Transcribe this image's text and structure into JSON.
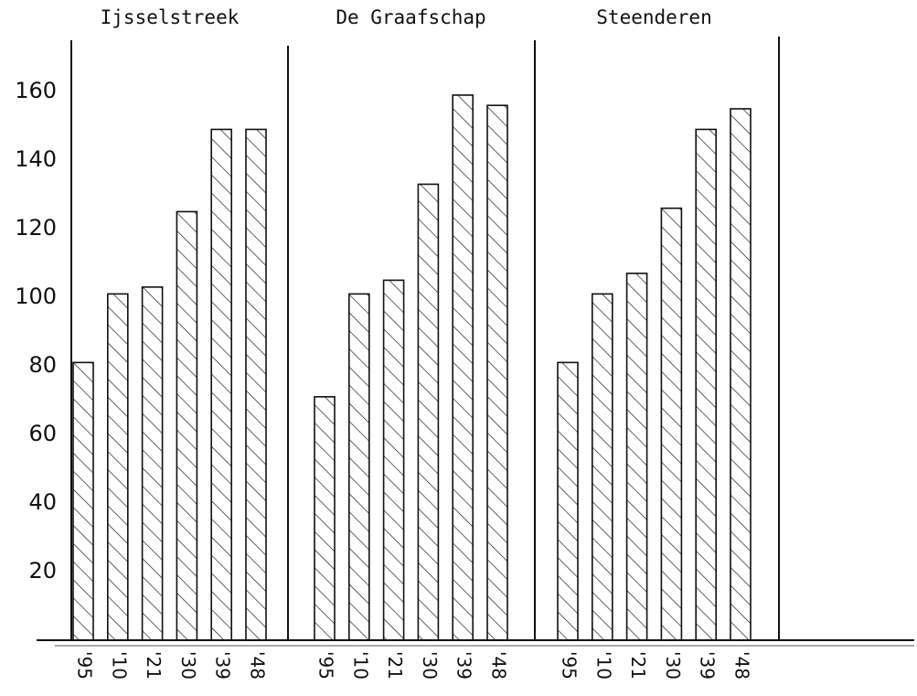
{
  "chart_data": {
    "type": "bar",
    "categories": [
      "'95",
      "'10",
      "'21",
      "'30",
      "'39",
      "'48"
    ],
    "series": [
      {
        "name": "Ijsselstreek",
        "color": "#111111",
        "values": [
          81,
          101,
          103,
          125,
          149,
          149
        ]
      },
      {
        "name": "De Graafschap",
        "color": "#111111",
        "values": [
          71,
          101,
          105,
          133,
          159,
          156
        ]
      },
      {
        "name": "Steenderen",
        "color": "#111111",
        "values": [
          81,
          101,
          107,
          126,
          149,
          155
        ]
      }
    ],
    "ylim": [
      0,
      175
    ],
    "yticks": [
      20,
      40,
      60,
      80,
      100,
      120,
      140,
      160
    ],
    "grid": false
  }
}
